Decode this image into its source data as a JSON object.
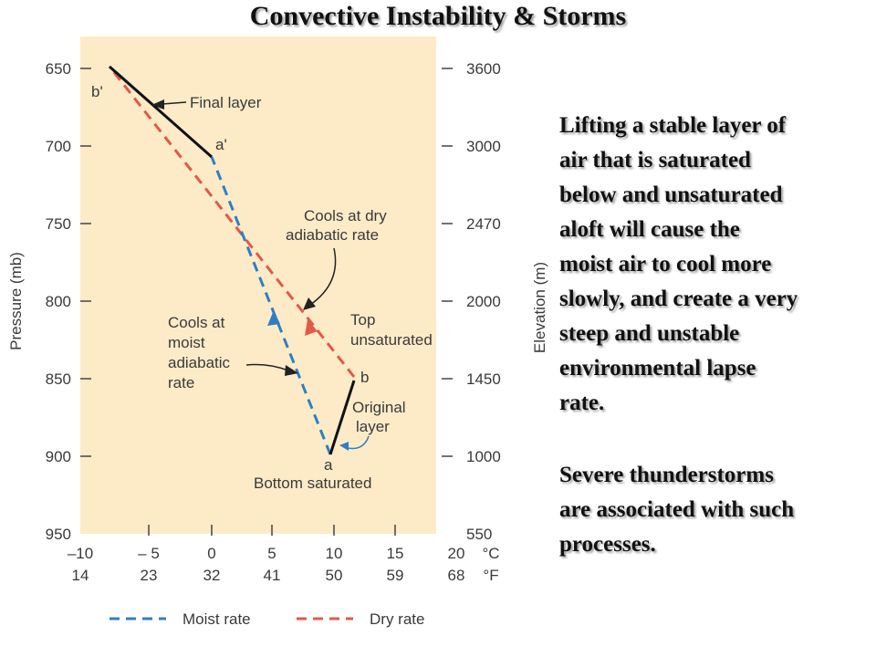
{
  "title": "Convective Instability & Storms",
  "text": {
    "para1": [
      "Lifting a stable layer of",
      "air that is saturated",
      "below and unsaturated",
      "aloft will cause the",
      "moist air to cool more",
      "slowly, and create a very",
      "steep and unstable",
      "environmental lapse",
      "rate."
    ],
    "para2": [
      "Severe thunderstorms",
      "are associated with such",
      "processes."
    ]
  },
  "diagram": {
    "left_axis": {
      "label": "Pressure (mb)",
      "ticks": [
        "650",
        "700",
        "750",
        "800",
        "850",
        "900",
        "950"
      ]
    },
    "right_axis": {
      "label": "Elevation (m)",
      "ticks": [
        "3600",
        "3000",
        "2470",
        "2000",
        "1450",
        "1000",
        "550"
      ]
    },
    "x_axis": {
      "celsius": [
        "–10",
        "– 5",
        "0",
        "5",
        "10",
        "15",
        "20"
      ],
      "fahrenheit": [
        "14",
        "23",
        "32",
        "41",
        "50",
        "59",
        "68"
      ],
      "unit_c": "°C",
      "unit_f": "°F"
    },
    "labels": {
      "point_b_prime": "b'",
      "point_a_prime": "a'",
      "point_b": "b",
      "point_a": "a",
      "final_layer": "Final layer",
      "dry_1": "Cools at dry",
      "dry_2": "adiabatic rate",
      "moist_1": "Cools at",
      "moist_2": "moist",
      "moist_3": "adiabatic",
      "moist_4": "rate",
      "top_1": "Top",
      "top_2": "unsaturated",
      "orig_1": "Original",
      "orig_2": "layer",
      "bottom": "Bottom saturated"
    },
    "legend": {
      "moist": "Moist rate",
      "dry": "Dry rate"
    },
    "colors": {
      "panel": "#fdebc8",
      "moist": "#2f7fc0",
      "dry": "#e05a48",
      "layer": "#111111"
    }
  }
}
